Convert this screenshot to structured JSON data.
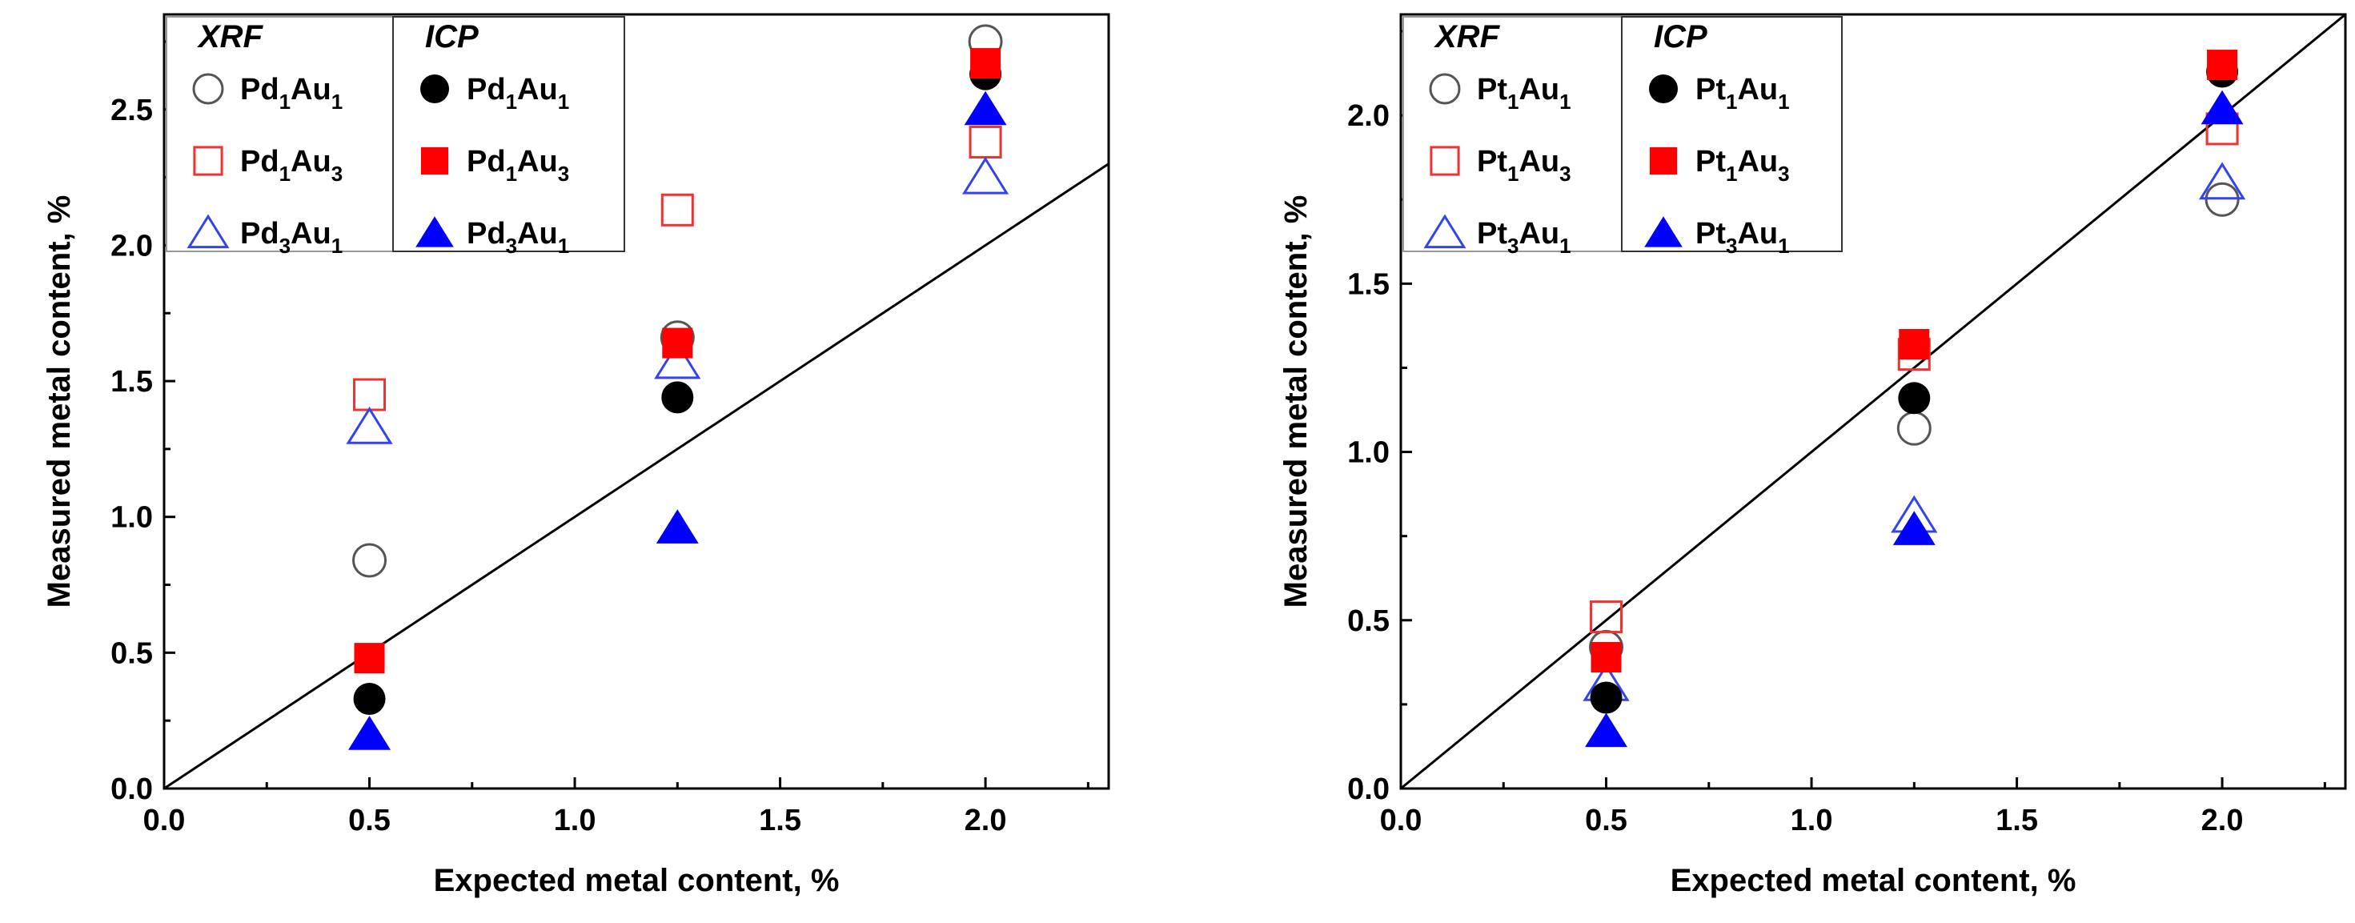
{
  "chart_data": [
    {
      "type": "scatter",
      "xlabel": "Expected metal content, %",
      "ylabel": "Measured metal content, %",
      "xlim": [
        0.0,
        2.3
      ],
      "ylim": [
        0.0,
        2.85
      ],
      "xticks": [
        {
          "value": 0.0,
          "label": "0.0"
        },
        {
          "value": 0.5,
          "label": "0.5"
        },
        {
          "value": 1.0,
          "label": "1.0"
        },
        {
          "value": 1.5,
          "label": "1.5"
        },
        {
          "value": 2.0,
          "label": "2.0"
        }
      ],
      "yticks": [
        {
          "value": 0.0,
          "label": "0.0"
        },
        {
          "value": 0.5,
          "label": "0.5"
        },
        {
          "value": 1.0,
          "label": "1.0"
        },
        {
          "value": 1.5,
          "label": "1.5"
        },
        {
          "value": 2.0,
          "label": "2.0"
        },
        {
          "value": 2.5,
          "label": "2.5"
        }
      ],
      "reference_line": "y = x",
      "legend_groups": [
        {
          "title": "XRF",
          "series_indices": [
            0,
            1,
            2
          ]
        },
        {
          "title": "ICP",
          "series_indices": [
            3,
            4,
            5
          ]
        }
      ],
      "series": [
        {
          "name": "Pd1Au1",
          "label": {
            "a": "Pd",
            "a_sub": "1",
            "b": "Au",
            "b_sub": "1"
          },
          "group": "XRF",
          "marker": "circle",
          "filled": false,
          "color": "#555555",
          "x": [
            0.5,
            1.25,
            2.0
          ],
          "y": [
            0.84,
            1.66,
            2.75
          ]
        },
        {
          "name": "Pd1Au3",
          "label": {
            "a": "Pd",
            "a_sub": "1",
            "b": "Au",
            "b_sub": "3"
          },
          "group": "XRF",
          "marker": "square",
          "filled": false,
          "color": "#ee3333",
          "x": [
            0.5,
            1.25,
            2.0
          ],
          "y": [
            1.45,
            2.13,
            2.38
          ]
        },
        {
          "name": "Pd3Au1",
          "label": {
            "a": "Pd",
            "a_sub": "3",
            "b": "Au",
            "b_sub": "1"
          },
          "group": "XRF",
          "marker": "triangle",
          "filled": false,
          "color": "#3344ee",
          "x": [
            0.5,
            1.25,
            2.0
          ],
          "y": [
            1.33,
            1.57,
            2.25
          ]
        },
        {
          "name": "Pd1Au1",
          "label": {
            "a": "Pd",
            "a_sub": "1",
            "b": "Au",
            "b_sub": "1"
          },
          "group": "ICP",
          "marker": "circle",
          "filled": true,
          "color": "#000000",
          "x": [
            0.5,
            1.25,
            2.0
          ],
          "y": [
            0.33,
            1.44,
            2.63
          ]
        },
        {
          "name": "Pd1Au3",
          "label": {
            "a": "Pd",
            "a_sub": "1",
            "b": "Au",
            "b_sub": "3"
          },
          "group": "ICP",
          "marker": "square",
          "filled": true,
          "color": "#ff0000",
          "x": [
            0.5,
            1.25,
            2.0
          ],
          "y": [
            0.48,
            1.64,
            2.67
          ]
        },
        {
          "name": "Pd3Au1",
          "label": {
            "a": "Pd",
            "a_sub": "3",
            "b": "Au",
            "b_sub": "1"
          },
          "group": "ICP",
          "marker": "triangle",
          "filled": true,
          "color": "#0000ff",
          "x": [
            0.5,
            1.25,
            2.0
          ],
          "y": [
            0.2,
            0.96,
            2.5
          ]
        }
      ]
    },
    {
      "type": "scatter",
      "xlabel": "Expected metal content, %",
      "ylabel": "Measured metal content, %",
      "xlim": [
        0.0,
        2.3
      ],
      "ylim": [
        0.0,
        2.3
      ],
      "xticks": [
        {
          "value": 0.0,
          "label": "0.0"
        },
        {
          "value": 0.5,
          "label": "0.5"
        },
        {
          "value": 1.0,
          "label": "1.0"
        },
        {
          "value": 1.5,
          "label": "1.5"
        },
        {
          "value": 2.0,
          "label": "2.0"
        }
      ],
      "yticks": [
        {
          "value": 0.0,
          "label": "0.0"
        },
        {
          "value": 0.5,
          "label": "0.5"
        },
        {
          "value": 1.0,
          "label": "1.0"
        },
        {
          "value": 1.5,
          "label": "1.5"
        },
        {
          "value": 2.0,
          "label": "2.0"
        }
      ],
      "reference_line": "y = x",
      "legend_groups": [
        {
          "title": "XRF",
          "series_indices": [
            0,
            1,
            2
          ]
        },
        {
          "title": "ICP",
          "series_indices": [
            3,
            4,
            5
          ]
        }
      ],
      "series": [
        {
          "name": "Pt1Au1",
          "label": {
            "a": "Pt",
            "a_sub": "1",
            "b": "Au",
            "b_sub": "1"
          },
          "group": "XRF",
          "marker": "circle",
          "filled": false,
          "color": "#555555",
          "x": [
            0.5,
            1.25,
            2.0
          ],
          "y": [
            0.42,
            1.07,
            1.75
          ]
        },
        {
          "name": "Pt1Au3",
          "label": {
            "a": "Pt",
            "a_sub": "1",
            "b": "Au",
            "b_sub": "3"
          },
          "group": "XRF",
          "marker": "square",
          "filled": false,
          "color": "#ee3333",
          "x": [
            0.5,
            1.25,
            2.0
          ],
          "y": [
            0.51,
            1.29,
            1.96
          ]
        },
        {
          "name": "Pt3Au1",
          "label": {
            "a": "Pt",
            "a_sub": "3",
            "b": "Au",
            "b_sub": "1"
          },
          "group": "XRF",
          "marker": "triangle",
          "filled": false,
          "color": "#3344ee",
          "x": [
            0.5,
            1.25,
            2.0
          ],
          "y": [
            0.31,
            0.81,
            1.8
          ]
        },
        {
          "name": "Pt1Au1",
          "label": {
            "a": "Pt",
            "a_sub": "1",
            "b": "Au",
            "b_sub": "1"
          },
          "group": "ICP",
          "marker": "circle",
          "filled": true,
          "color": "#000000",
          "x": [
            0.5,
            1.25,
            2.0
          ],
          "y": [
            0.27,
            1.16,
            2.13
          ]
        },
        {
          "name": "Pt1Au3",
          "label": {
            "a": "Pt",
            "a_sub": "1",
            "b": "Au",
            "b_sub": "3"
          },
          "group": "ICP",
          "marker": "square",
          "filled": true,
          "color": "#ff0000",
          "x": [
            0.5,
            1.25,
            2.0
          ],
          "y": [
            0.39,
            1.32,
            2.15
          ]
        },
        {
          "name": "Pt3Au1",
          "label": {
            "a": "Pt",
            "a_sub": "3",
            "b": "Au",
            "b_sub": "1"
          },
          "group": "ICP",
          "marker": "triangle",
          "filled": true,
          "color": "#0000ff",
          "x": [
            0.5,
            1.25,
            2.0
          ],
          "y": [
            0.17,
            0.77,
            2.02
          ]
        }
      ]
    }
  ]
}
